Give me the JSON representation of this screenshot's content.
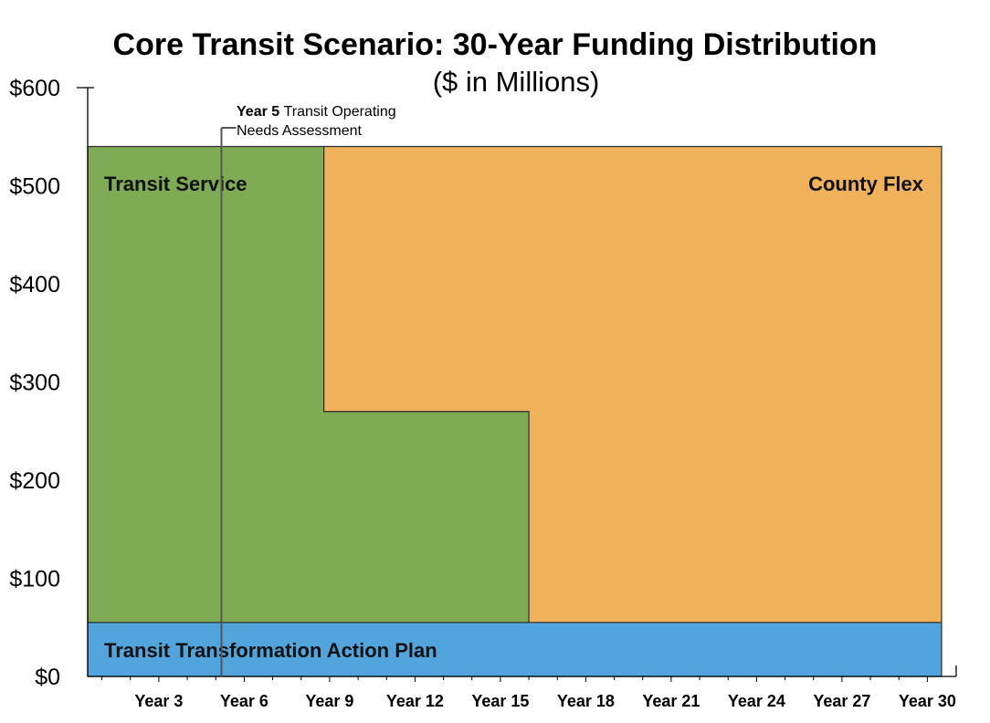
{
  "chart_data": {
    "type": "area",
    "title": "Core Transit Scenario: 30-Year Funding Distribution",
    "subtitle": "($ in Millions)",
    "xlabel": "",
    "ylabel": "",
    "xlim": [
      0,
      30
    ],
    "ylim": [
      0,
      600
    ],
    "x_ticks": [
      "Year 3",
      "Year 6",
      "Year 9",
      "Year 12",
      "Year 15",
      "Year 18",
      "Year 21",
      "Year 24",
      "Year 27",
      "Year 30"
    ],
    "y_ticks": [
      "$0",
      "$100",
      "$200",
      "$300",
      "$400",
      "$500",
      "$600"
    ],
    "grid": false,
    "legend": "none",
    "regions": [
      {
        "name": "Transit Transformation Action Plan",
        "color": "#52a5dc",
        "steps": [
          {
            "x0": 0,
            "x1": 30,
            "y0": 0,
            "y1": 55
          }
        ]
      },
      {
        "name": "Transit Service",
        "color": "#7fab55",
        "steps": [
          {
            "x0": 0,
            "x1": 8.3,
            "y0": 55,
            "y1": 540
          },
          {
            "x0": 8.3,
            "x1": 15.5,
            "y0": 55,
            "y1": 270
          }
        ]
      },
      {
        "name": "County Flex",
        "color": "#efb25a",
        "steps": [
          {
            "x0": 8.3,
            "x1": 15.5,
            "y0": 270,
            "y1": 540
          },
          {
            "x0": 15.5,
            "x1": 30,
            "y0": 55,
            "y1": 540
          }
        ]
      }
    ],
    "annotation": {
      "x": 4.7,
      "bold": "Year 5",
      "text_line1": "Transit Operating",
      "text_line2": "Needs Assessment"
    }
  }
}
